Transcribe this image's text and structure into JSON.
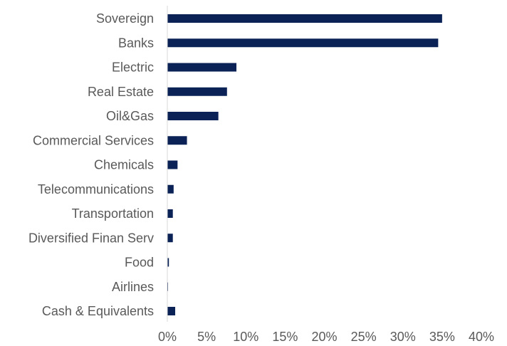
{
  "chart_data": {
    "type": "bar",
    "orientation": "horizontal",
    "categories": [
      "Sovereign",
      "Banks",
      "Electric",
      "Real Estate",
      "Oil&Gas",
      "Commercial Services",
      "Chemicals",
      "Telecommunications",
      "Transportation",
      "Diversified Finan Serv",
      "Food",
      "Airlines",
      "Cash & Equivalents"
    ],
    "values": [
      35.0,
      34.5,
      8.8,
      7.6,
      6.5,
      2.5,
      1.3,
      0.8,
      0.7,
      0.7,
      0.2,
      0.05,
      1.0
    ],
    "xlim": [
      0,
      40
    ],
    "xticks": [
      0,
      5,
      10,
      15,
      20,
      25,
      30,
      35,
      40
    ],
    "tick_labels": [
      "0%",
      "5%",
      "10%",
      "15%",
      "20%",
      "25%",
      "30%",
      "35%",
      "40%"
    ],
    "bar_color": "#0b2257",
    "axis_color": "#d9d9d9",
    "grid": false,
    "legend": "none"
  }
}
